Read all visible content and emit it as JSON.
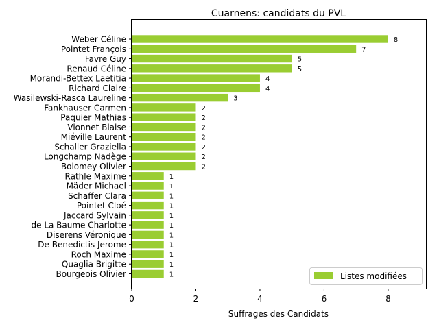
{
  "chart_data": {
    "type": "bar",
    "orientation": "horizontal",
    "title": "Cuarnens: candidats du PVL",
    "xlabel": "Suffrages des Candidats",
    "ylabel": "",
    "xlim": [
      0,
      9.2
    ],
    "xticks": [
      0,
      2,
      4,
      6,
      8
    ],
    "grid": false,
    "legend_position": "lower-right",
    "series": [
      {
        "name": "Listes modifiées",
        "color": "#9acd32",
        "categories": [
          "Weber Céline",
          "Pointet François",
          "Favre Guy",
          "Renaud Céline",
          "Morandi-Bettex Laetitia",
          "Richard Claire",
          "Wasilewski-Rasca Laureline",
          "Fankhauser Carmen",
          "Paquier Mathias",
          "Vionnet Blaise",
          "Miéville Laurent",
          "Schaller Graziella",
          "Longchamp Nadège",
          "Bolomey Olivier",
          "Rathle Maxime",
          "Mäder Michael",
          "Schaffer Clara",
          "Pointet Cloé",
          "Jaccard Sylvain",
          "de La Baume Charlotte",
          "Diserens Véronique",
          "De Benedictis Jerome",
          "Roch Maxime",
          "Quaglia Brigitte",
          "Bourgeois Olivier"
        ],
        "values": [
          8,
          7,
          5,
          5,
          4,
          4,
          3,
          2,
          2,
          2,
          2,
          2,
          2,
          2,
          1,
          1,
          1,
          1,
          1,
          1,
          1,
          1,
          1,
          1,
          1
        ]
      }
    ]
  }
}
